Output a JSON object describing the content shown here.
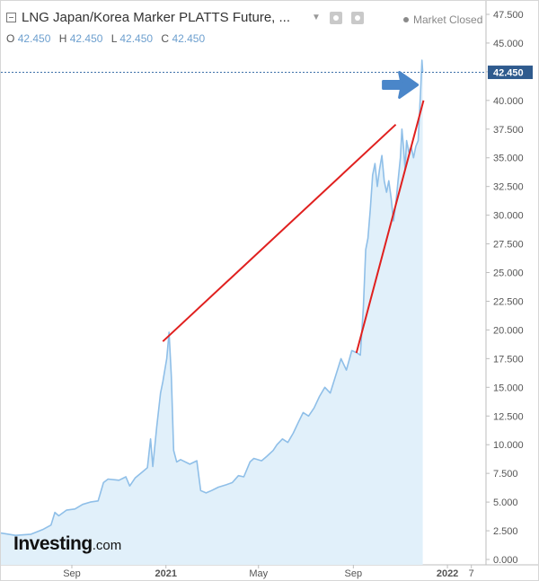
{
  "header": {
    "title": "LNG Japan/Korea Marker PLATTS Future, ...",
    "status": "Market Closed",
    "ohlc": [
      {
        "k": "O",
        "v": "42.450"
      },
      {
        "k": "H",
        "v": "42.450"
      },
      {
        "k": "L",
        "v": "42.450"
      },
      {
        "k": "C",
        "v": "42.450"
      }
    ]
  },
  "logo": {
    "brand": "Investing",
    "suffix": ".com"
  },
  "colors": {
    "line": "#8fbfe8",
    "fill": "#e1f0fa",
    "trend": "#e0201f",
    "badge": "#2f5b8e",
    "arrow": "#4a86c9"
  },
  "chart_data": {
    "type": "area",
    "ylim": [
      0,
      47.5
    ],
    "y_ticks": [
      "0.000",
      "2.500",
      "5.000",
      "7.500",
      "10.000",
      "12.500",
      "15.000",
      "17.500",
      "20.000",
      "22.500",
      "25.000",
      "27.500",
      "30.000",
      "32.500",
      "35.000",
      "37.500",
      "40.000",
      "42.500",
      "45.000",
      "47.500"
    ],
    "x_ticks": [
      "Sep",
      "2021",
      "May",
      "Sep",
      "2022",
      "7"
    ],
    "last_value": "42.450",
    "series": [
      {
        "points": [
          [
            "2020-06-01",
            2.3
          ],
          [
            "2020-06-20",
            2.1
          ],
          [
            "2020-07-10",
            2.2
          ],
          [
            "2020-07-25",
            2.6
          ],
          [
            "2020-08-05",
            3.0
          ],
          [
            "2020-08-10",
            4.1
          ],
          [
            "2020-08-15",
            3.8
          ],
          [
            "2020-08-25",
            4.3
          ],
          [
            "2020-09-05",
            4.4
          ],
          [
            "2020-09-15",
            4.8
          ],
          [
            "2020-09-25",
            5.0
          ],
          [
            "2020-10-05",
            5.1
          ],
          [
            "2020-10-12",
            6.7
          ],
          [
            "2020-10-18",
            7.0
          ],
          [
            "2020-11-01",
            6.9
          ],
          [
            "2020-11-10",
            7.2
          ],
          [
            "2020-11-15",
            6.4
          ],
          [
            "2020-11-22",
            7.1
          ],
          [
            "2020-12-01",
            7.6
          ],
          [
            "2020-12-08",
            8.0
          ],
          [
            "2020-12-12",
            10.5
          ],
          [
            "2020-12-15",
            8.1
          ],
          [
            "2020-12-20",
            11.5
          ],
          [
            "2020-12-25",
            14.5
          ],
          [
            "2020-12-28",
            15.5
          ],
          [
            "2021-01-02",
            17.5
          ],
          [
            "2021-01-05",
            19.8
          ],
          [
            "2021-01-08",
            16.0
          ],
          [
            "2021-01-11",
            9.5
          ],
          [
            "2021-01-15",
            8.5
          ],
          [
            "2021-01-20",
            8.7
          ],
          [
            "2021-02-01",
            8.3
          ],
          [
            "2021-02-10",
            8.6
          ],
          [
            "2021-02-15",
            6.0
          ],
          [
            "2021-02-22",
            5.8
          ],
          [
            "2021-03-01",
            6.0
          ],
          [
            "2021-03-10",
            6.3
          ],
          [
            "2021-03-20",
            6.5
          ],
          [
            "2021-03-28",
            6.7
          ],
          [
            "2021-04-05",
            7.3
          ],
          [
            "2021-04-12",
            7.2
          ],
          [
            "2021-04-20",
            8.5
          ],
          [
            "2021-04-25",
            8.8
          ],
          [
            "2021-05-05",
            8.6
          ],
          [
            "2021-05-12",
            9.0
          ],
          [
            "2021-05-20",
            9.5
          ],
          [
            "2021-05-25",
            10.0
          ],
          [
            "2021-06-01",
            10.5
          ],
          [
            "2021-06-08",
            10.2
          ],
          [
            "2021-06-15",
            11.0
          ],
          [
            "2021-06-22",
            12.0
          ],
          [
            "2021-06-28",
            12.8
          ],
          [
            "2021-07-05",
            12.5
          ],
          [
            "2021-07-12",
            13.2
          ],
          [
            "2021-07-19",
            14.2
          ],
          [
            "2021-07-26",
            15.0
          ],
          [
            "2021-08-02",
            14.5
          ],
          [
            "2021-08-09",
            16.0
          ],
          [
            "2021-08-16",
            17.5
          ],
          [
            "2021-08-23",
            16.5
          ],
          [
            "2021-08-30",
            18.2
          ],
          [
            "2021-09-06",
            18.0
          ],
          [
            "2021-09-10",
            17.8
          ],
          [
            "2021-09-14",
            22.0
          ],
          [
            "2021-09-17",
            27.0
          ],
          [
            "2021-09-20",
            28.0
          ],
          [
            "2021-09-23",
            30.5
          ],
          [
            "2021-09-26",
            33.5
          ],
          [
            "2021-09-29",
            34.5
          ],
          [
            "2021-10-02",
            32.5
          ],
          [
            "2021-10-05",
            34.0
          ],
          [
            "2021-10-08",
            35.2
          ],
          [
            "2021-10-11",
            33.0
          ],
          [
            "2021-10-14",
            32.0
          ],
          [
            "2021-10-17",
            33.0
          ],
          [
            "2021-10-20",
            31.5
          ],
          [
            "2021-10-23",
            29.5
          ],
          [
            "2021-10-26",
            31.0
          ],
          [
            "2021-10-29",
            33.0
          ],
          [
            "2021-11-01",
            35.0
          ],
          [
            "2021-11-03",
            37.5
          ],
          [
            "2021-11-05",
            36.0
          ],
          [
            "2021-11-07",
            34.0
          ],
          [
            "2021-11-09",
            36.5
          ],
          [
            "2021-11-12",
            35.5
          ],
          [
            "2021-11-15",
            36.0
          ],
          [
            "2021-11-18",
            35.0
          ],
          [
            "2021-11-21",
            36.0
          ],
          [
            "2021-11-24",
            36.5
          ],
          [
            "2021-11-27",
            40.5
          ],
          [
            "2021-11-29",
            43.5
          ],
          [
            "2021-11-30",
            42.45
          ]
        ]
      }
    ],
    "trendlines": [
      {
        "from": [
          "2020-12-28",
          19.0
        ],
        "to": [
          "2021-10-26",
          37.9
        ]
      },
      {
        "from": [
          "2021-09-05",
          18.0
        ],
        "to": [
          "2021-12-01",
          40.0
        ]
      }
    ]
  }
}
